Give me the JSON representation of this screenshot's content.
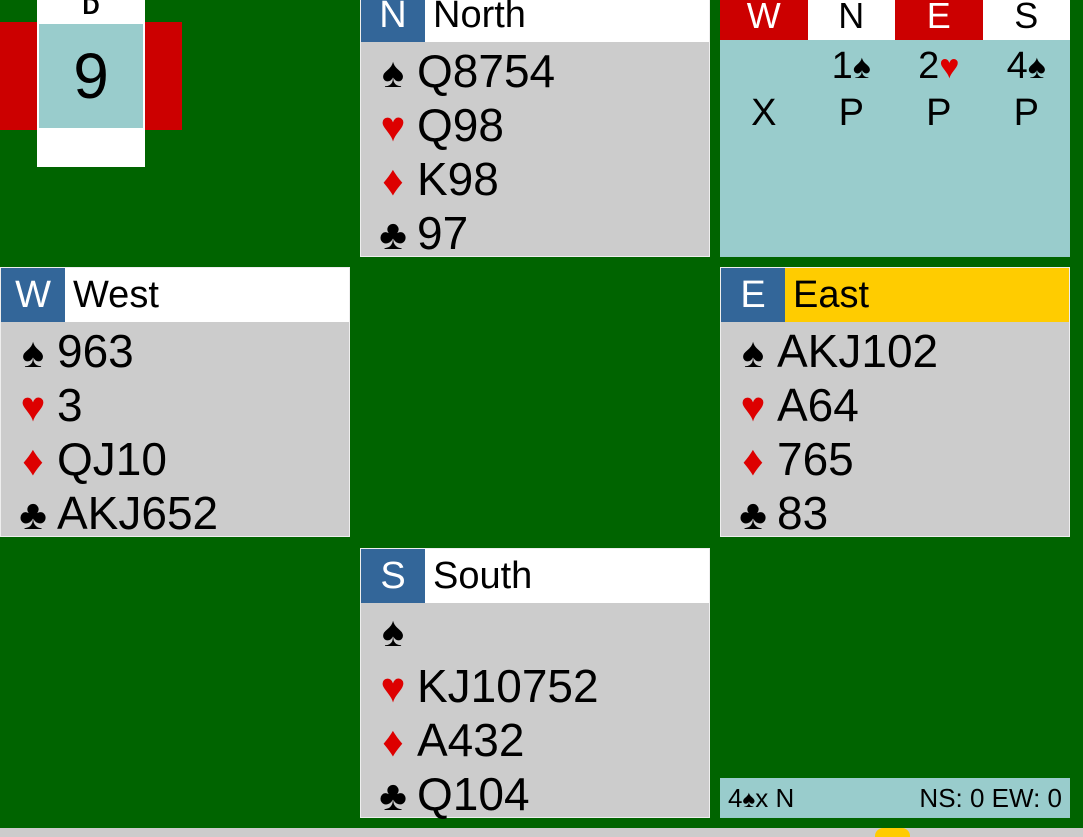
{
  "board": {
    "dealer_label": "D",
    "number": 9
  },
  "suits": [
    {
      "symbol": "♠",
      "color": "#000000"
    },
    {
      "symbol": "♥",
      "color": "#dd0000"
    },
    {
      "symbol": "♦",
      "color": "#dd0000"
    },
    {
      "symbol": "♣",
      "color": "#000000"
    }
  ],
  "hands": [
    {
      "seat": "N",
      "name": "North",
      "holdings": [
        "Q8754",
        "Q98",
        "K98",
        "97"
      ]
    },
    {
      "seat": "W",
      "name": "West",
      "holdings": [
        "963",
        "3",
        "QJ10",
        "AKJ652"
      ]
    },
    {
      "seat": "E",
      "name": "East",
      "holdings": [
        "AKJ102",
        "A64",
        "765",
        "83"
      ]
    },
    {
      "seat": "S",
      "name": "South",
      "holdings": [
        null,
        "KJ10752",
        "A432",
        "Q104"
      ]
    }
  ],
  "auction": {
    "header": [
      "W",
      "N",
      "E",
      "S"
    ],
    "bids": [
      null,
      {
        "level": "1",
        "suit": 0
      },
      {
        "level": "2",
        "suit": 1
      },
      {
        "level": "4",
        "suit": 0
      },
      "X",
      "P",
      "P",
      "P"
    ]
  },
  "status": {
    "contract": {
      "level": "4",
      "suit": 0,
      "suffix": "x N"
    },
    "score": "NS: 0 EW: 0"
  }
}
